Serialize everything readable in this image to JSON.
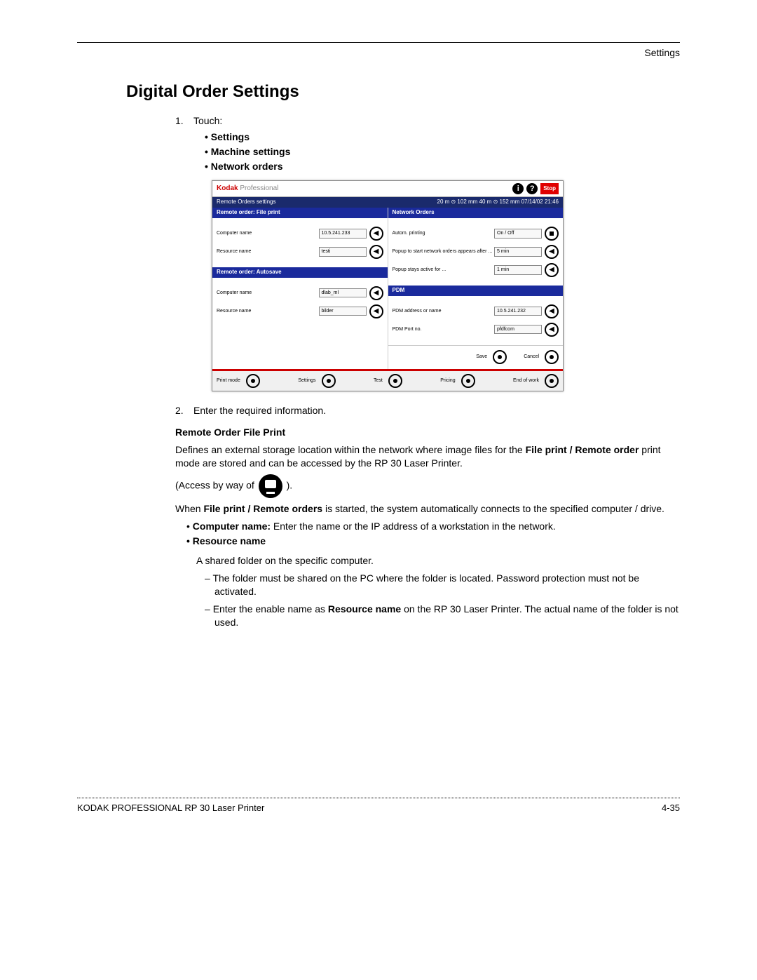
{
  "header_label": "Settings",
  "title": "Digital Order Settings",
  "step1_num": "1.",
  "step1_text": "Touch:",
  "touch_bullets": [
    "Settings",
    "Machine settings",
    "Network orders"
  ],
  "step2_num": "2.",
  "step2_text": "Enter the required information.",
  "section1_head": "Remote Order File Print",
  "section1_p1a": "Defines an external storage location within the network where image files for the ",
  "section1_p1b": "File print / Remote order",
  "section1_p1c": " print mode are stored and can be accessed by the RP 30 Laser Printer.",
  "access_prefix": "(Access by way of ",
  "access_suffix": ").",
  "section1_p2a": "When ",
  "section1_p2b": "File print / Remote orders",
  "section1_p2c": " is started, the system automatically connects to the specified computer / drive.",
  "bullet_cn_label": "Computer name:",
  "bullet_cn_text": " Enter the name or the IP address of a workstation in the network.",
  "bullet_rn_label": "Resource name",
  "rn_line": "A shared folder on the specific computer.",
  "rn_dash1": "The folder must be shared on the PC where the folder is located. Password protection must not be activated.",
  "rn_dash2a": "Enter the enable name as ",
  "rn_dash2b": "Resource name",
  "rn_dash2c": " on the RP 30 Laser Printer. The actual name of the folder is not used.",
  "footer_left": "KODAK PROFESSIONAL RP 30 Laser Printer",
  "footer_right": "4-35",
  "screenshot": {
    "brand1": "Kodak",
    "brand2": " Professional",
    "info_icon": "i",
    "help_icon": "?",
    "stop": "Stop",
    "status_left": "Remote Orders settings",
    "status_right": "20 m ⊙ 102 mm   40 m ⊙ 152 mm  07/14/02     21:46",
    "panel_fp_head": "Remote order: File print",
    "panel_no_head": "Network Orders",
    "panel_as_head": "Remote order: Autosave",
    "panel_pdm_head": "PDM",
    "fields_fp": [
      {
        "label": "Computer name",
        "value": "10.5.241.233"
      },
      {
        "label": "Resource name",
        "value": "testi"
      }
    ],
    "fields_no": [
      {
        "label": "Autom. printing",
        "value": "On / Off",
        "btn": "square"
      },
      {
        "label": "Popup to start network orders appears after ...",
        "value": "5 min",
        "btn": "arrow"
      },
      {
        "label": "Popup stays active for ...",
        "value": "1 min",
        "btn": "arrow"
      }
    ],
    "fields_as": [
      {
        "label": "Computer name",
        "value": "dlab_ml"
      },
      {
        "label": "Resource name",
        "value": "bilder"
      }
    ],
    "fields_pdm": [
      {
        "label": "PDM address or name",
        "value": "10.5.241.232"
      },
      {
        "label": "PDM Port no.",
        "value": "pfdfcom"
      }
    ],
    "save": "Save",
    "cancel": "Cancel",
    "nav": [
      "Print mode",
      "Settings",
      "Test",
      "Pricing",
      "End of work"
    ]
  }
}
